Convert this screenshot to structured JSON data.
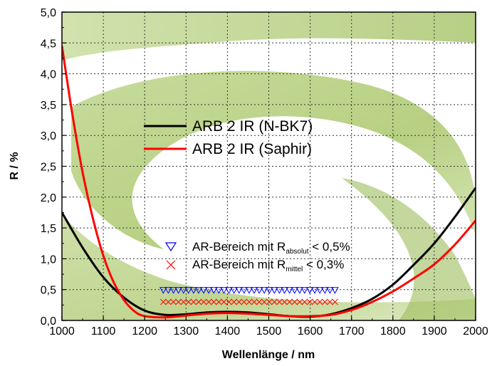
{
  "chart_data": {
    "type": "line",
    "xlabel": "Wellenlänge / nm",
    "ylabel": "R / %",
    "xlim": [
      1000,
      2000
    ],
    "ylim": [
      0,
      5
    ],
    "x_ticks": [
      "1000",
      "1100",
      "1200",
      "1300",
      "1400",
      "1500",
      "1600",
      "1700",
      "1800",
      "1900",
      "2000"
    ],
    "y_ticks": [
      "0,0",
      "0,5",
      "1,0",
      "1,5",
      "2,0",
      "2,5",
      "3,0",
      "3,5",
      "4,0",
      "4,5",
      "5,0"
    ],
    "grid": true,
    "legend_position": "center",
    "series": [
      {
        "name": "ARB 2 IR (N-BK7)",
        "color": "#000000",
        "points": [
          [
            1000,
            1.75
          ],
          [
            1050,
            1.18
          ],
          [
            1100,
            0.7
          ],
          [
            1150,
            0.37
          ],
          [
            1200,
            0.16
          ],
          [
            1250,
            0.09
          ],
          [
            1300,
            0.1
          ],
          [
            1350,
            0.13
          ],
          [
            1400,
            0.14
          ],
          [
            1450,
            0.13
          ],
          [
            1500,
            0.1
          ],
          [
            1550,
            0.07
          ],
          [
            1600,
            0.06
          ],
          [
            1650,
            0.1
          ],
          [
            1700,
            0.2
          ],
          [
            1750,
            0.35
          ],
          [
            1800,
            0.58
          ],
          [
            1850,
            0.9
          ],
          [
            1900,
            1.25
          ],
          [
            1950,
            1.68
          ],
          [
            2000,
            2.15
          ]
        ]
      },
      {
        "name": "ARB 2 IR (Saphir)",
        "color": "#ff0000",
        "points": [
          [
            1000,
            4.45
          ],
          [
            1025,
            3.35
          ],
          [
            1050,
            2.4
          ],
          [
            1075,
            1.65
          ],
          [
            1100,
            1.05
          ],
          [
            1125,
            0.62
          ],
          [
            1150,
            0.33
          ],
          [
            1175,
            0.15
          ],
          [
            1200,
            0.07
          ],
          [
            1250,
            0.05
          ],
          [
            1300,
            0.08
          ],
          [
            1350,
            0.11
          ],
          [
            1400,
            0.12
          ],
          [
            1450,
            0.11
          ],
          [
            1500,
            0.09
          ],
          [
            1550,
            0.07
          ],
          [
            1600,
            0.07
          ],
          [
            1650,
            0.09
          ],
          [
            1700,
            0.17
          ],
          [
            1750,
            0.3
          ],
          [
            1800,
            0.47
          ],
          [
            1850,
            0.68
          ],
          [
            1900,
            0.91
          ],
          [
            1950,
            1.23
          ],
          [
            2000,
            1.62
          ]
        ]
      }
    ],
    "markers": [
      {
        "name": "AR-Bereich mit R absolut < 0,5%",
        "marker": "triangle-down",
        "color": "#0000ff",
        "y": 0.5,
        "x_range": [
          1245,
          1660
        ]
      },
      {
        "name": "AR-Bereich mit R mittel < 0,3%",
        "marker": "x",
        "color": "#ff0000",
        "y": 0.3,
        "x_range": [
          1245,
          1660
        ]
      }
    ],
    "legend": {
      "line1": "ARB 2 IR (N-BK7)",
      "line2": "ARB 2 IR (Saphir)"
    },
    "annotations": {
      "abs": {
        "prefix": "AR-Bereich mit R",
        "sub": "absolut",
        "suffix": " < 0,5%"
      },
      "mit": {
        "prefix": "AR-Bereich mit R",
        "sub": "mittel",
        "suffix": " < 0,3%"
      }
    },
    "colors": {
      "background_leaf": "#a9c96a",
      "grid": "#333333"
    }
  }
}
